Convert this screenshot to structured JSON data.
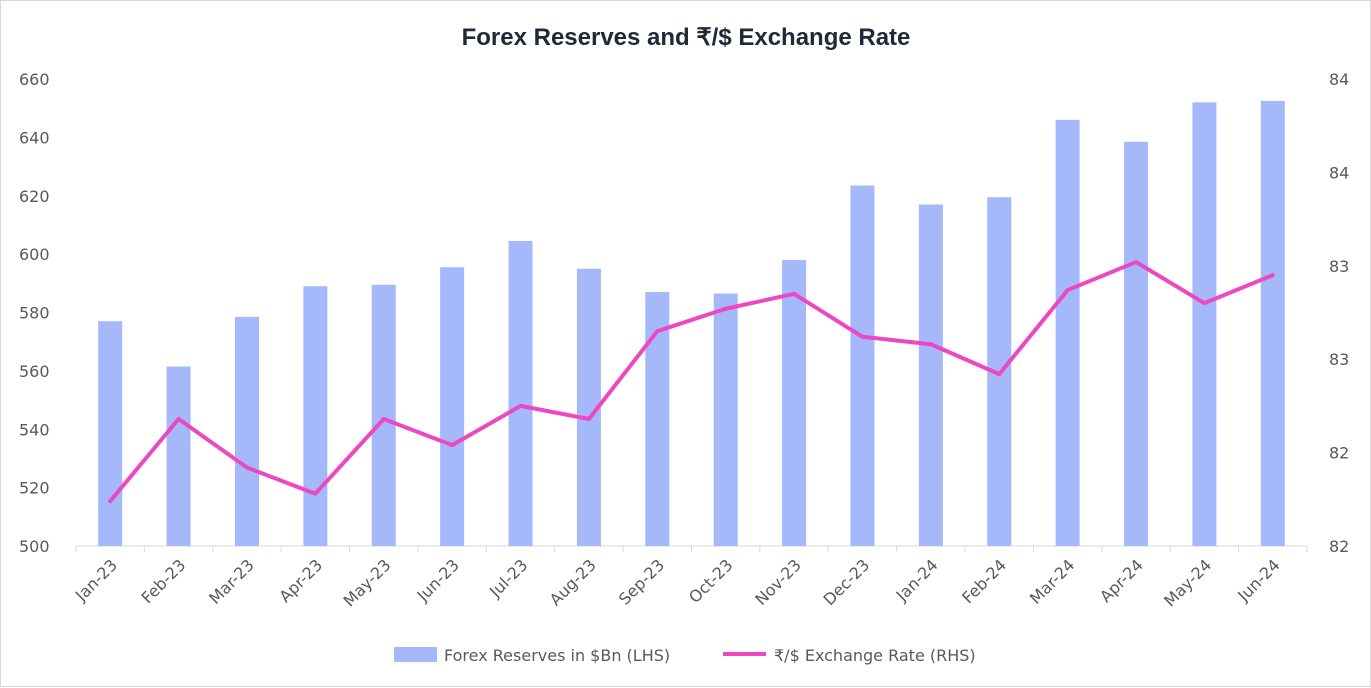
{
  "chart_data": {
    "type": "bar",
    "title": "Forex Reserves and ₹/$ Exchange Rate",
    "categories": [
      "Jan-23",
      "Feb-23",
      "Mar-23",
      "Apr-23",
      "May-23",
      "Jun-23",
      "Jul-23",
      "Aug-23",
      "Sep-23",
      "Oct-23",
      "Nov-23",
      "Dec-23",
      "Jan-24",
      "Feb-24",
      "Mar-24",
      "Apr-24",
      "May-24",
      "Jun-24"
    ],
    "left_axis": {
      "ylim": [
        500,
        660
      ],
      "ticks": [
        "500",
        "520",
        "540",
        "560",
        "580",
        "600",
        "620",
        "640",
        "660"
      ]
    },
    "right_axis": {
      "ylim": [
        82,
        84.5
      ],
      "ticks": [
        "82",
        "82",
        "83",
        "83",
        "84",
        "84"
      ]
    },
    "series": [
      {
        "name": "Forex Reserves in $Bn (LHS)",
        "type": "bar",
        "axis": "left",
        "color": "#a4b8fa",
        "values": [
          577,
          561.5,
          578.5,
          589,
          589.5,
          595.5,
          604.5,
          595,
          587,
          586.5,
          598,
          623.5,
          617,
          619.5,
          646,
          638.5,
          652,
          652.5
        ]
      },
      {
        "name": "₹/$ Exchange Rate (RHS)",
        "type": "line",
        "axis": "right",
        "color": "#ec48c2",
        "values": [
          82.24,
          82.68,
          82.42,
          82.28,
          82.68,
          82.54,
          82.75,
          82.68,
          83.15,
          83.27,
          83.35,
          83.12,
          83.08,
          82.92,
          83.37,
          83.52,
          83.3,
          83.45
        ]
      }
    ],
    "grid": false,
    "legend": "bottom"
  }
}
